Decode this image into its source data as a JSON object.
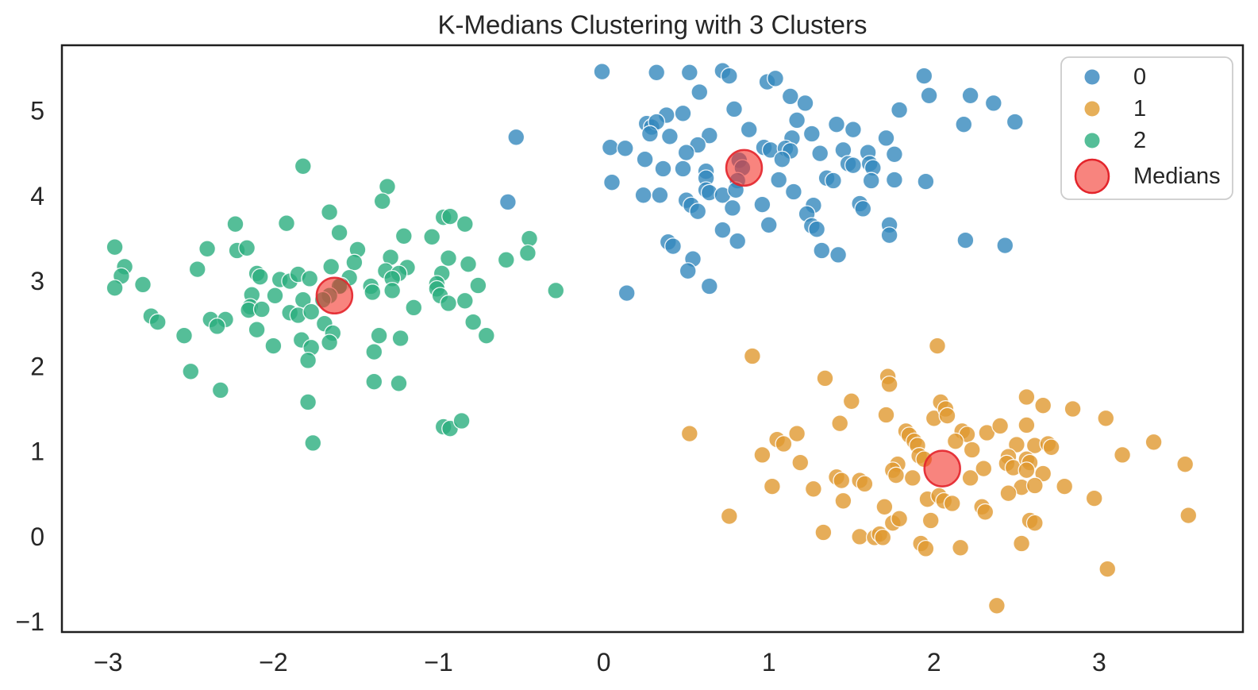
{
  "figure": {
    "title": "K-Medians Clustering with 3 Clusters",
    "background_color": "#ffffff",
    "spine_color": "#1f1f1f",
    "text_color": "#262626"
  },
  "legend": {
    "position": "upper right",
    "border_color": "#cccccc",
    "background_color": "#ffffff",
    "entries": [
      {
        "label": "0",
        "series": "cluster0",
        "marker_color": "#5C9DCA",
        "marker": "small-dot"
      },
      {
        "label": "1",
        "series": "cluster1",
        "marker_color": "#E6AF59",
        "marker": "small-dot"
      },
      {
        "label": "2",
        "series": "cluster2",
        "marker_color": "#55BE98",
        "marker": "small-dot"
      },
      {
        "label": "Medians",
        "series": "medians",
        "marker_color": "#F43228",
        "marker_edge_color": "#E3242B",
        "marker": "large-dot"
      }
    ]
  },
  "chart_data": {
    "type": "scatter",
    "title": "K-Medians Clustering with 3 Clusters",
    "xlabel": "",
    "ylabel": "",
    "xlim": [
      -3.28,
      3.87
    ],
    "ylim": [
      -1.12,
      5.77
    ],
    "grid": false,
    "xticks": {
      "values": [
        -3,
        -2,
        -1,
        0,
        1,
        2,
        3
      ],
      "labels": [
        "−3",
        "−2",
        "−1",
        "0",
        "1",
        "2",
        "3"
      ]
    },
    "yticks": {
      "values": [
        -1,
        0,
        1,
        2,
        3,
        4,
        5
      ],
      "labels": [
        "−1",
        "0",
        "1",
        "2",
        "3",
        "4",
        "5"
      ]
    },
    "series": [
      {
        "name": "0",
        "key": "cluster0",
        "color": "#3488BD",
        "alpha": 0.8,
        "marker_radius_px": 10.3,
        "edge_color": "#ffffff",
        "points": [
          [
            -0.53,
            4.69
          ],
          [
            -0.58,
            3.93
          ],
          [
            -0.01,
            5.46
          ],
          [
            0.32,
            5.45
          ],
          [
            0.52,
            5.45
          ],
          [
            0.72,
            5.47
          ],
          [
            0.76,
            5.41
          ],
          [
            0.99,
            5.34
          ],
          [
            1.04,
            5.38
          ],
          [
            0.58,
            5.22
          ],
          [
            0.79,
            5.02
          ],
          [
            0.38,
            4.95
          ],
          [
            0.48,
            4.97
          ],
          [
            0.26,
            4.85
          ],
          [
            0.29,
            4.81
          ],
          [
            0.32,
            4.87
          ],
          [
            0.28,
            4.73
          ],
          [
            0.4,
            4.7
          ],
          [
            0.64,
            4.71
          ],
          [
            0.88,
            4.78
          ],
          [
            0.04,
            4.57
          ],
          [
            0.13,
            4.56
          ],
          [
            0.57,
            4.6
          ],
          [
            0.5,
            4.51
          ],
          [
            0.25,
            4.43
          ],
          [
            0.97,
            4.57
          ],
          [
            1.01,
            4.54
          ],
          [
            0.82,
            4.42
          ],
          [
            0.84,
            4.33
          ],
          [
            0.81,
            4.18
          ],
          [
            0.36,
            4.32
          ],
          [
            0.48,
            4.32
          ],
          [
            0.62,
            4.29
          ],
          [
            0.62,
            4.21
          ],
          [
            0.05,
            4.16
          ],
          [
            0.24,
            4.01
          ],
          [
            0.34,
            4.01
          ],
          [
            0.62,
            4.07
          ],
          [
            0.64,
            4.04
          ],
          [
            0.72,
            4.01
          ],
          [
            0.8,
            4.07
          ],
          [
            0.5,
            3.95
          ],
          [
            0.53,
            3.89
          ],
          [
            0.57,
            3.82
          ],
          [
            0.78,
            3.86
          ],
          [
            0.96,
            3.9
          ],
          [
            0.72,
            3.6
          ],
          [
            0.81,
            3.47
          ],
          [
            0.39,
            3.46
          ],
          [
            0.42,
            3.41
          ],
          [
            0.54,
            3.26
          ],
          [
            0.51,
            3.12
          ],
          [
            0.64,
            2.94
          ],
          [
            0.14,
            2.86
          ],
          [
            1.0,
            3.66
          ],
          [
            1.94,
            5.41
          ],
          [
            1.13,
            5.17
          ],
          [
            1.22,
            5.09
          ],
          [
            1.97,
            5.18
          ],
          [
            2.22,
            5.18
          ],
          [
            2.36,
            5.09
          ],
          [
            1.79,
            5.01
          ],
          [
            1.17,
            4.89
          ],
          [
            2.49,
            4.87
          ],
          [
            2.18,
            4.84
          ],
          [
            1.41,
            4.84
          ],
          [
            1.51,
            4.78
          ],
          [
            1.14,
            4.68
          ],
          [
            1.26,
            4.73
          ],
          [
            1.71,
            4.68
          ],
          [
            1.1,
            4.56
          ],
          [
            1.13,
            4.53
          ],
          [
            1.08,
            4.43
          ],
          [
            1.31,
            4.5
          ],
          [
            1.45,
            4.54
          ],
          [
            1.6,
            4.51
          ],
          [
            1.76,
            4.49
          ],
          [
            1.48,
            4.38
          ],
          [
            1.51,
            4.36
          ],
          [
            1.61,
            4.38
          ],
          [
            1.63,
            4.33
          ],
          [
            1.06,
            4.19
          ],
          [
            1.35,
            4.21
          ],
          [
            1.39,
            4.18
          ],
          [
            1.62,
            4.18
          ],
          [
            1.76,
            4.19
          ],
          [
            1.95,
            4.17
          ],
          [
            1.15,
            4.05
          ],
          [
            1.27,
            3.89
          ],
          [
            1.23,
            3.79
          ],
          [
            1.55,
            3.91
          ],
          [
            1.57,
            3.85
          ],
          [
            1.26,
            3.65
          ],
          [
            1.29,
            3.61
          ],
          [
            1.73,
            3.66
          ],
          [
            1.73,
            3.54
          ],
          [
            2.19,
            3.48
          ],
          [
            2.43,
            3.42
          ],
          [
            1.32,
            3.36
          ],
          [
            1.42,
            3.31
          ]
        ]
      },
      {
        "name": "1",
        "key": "cluster1",
        "color": "#E0992F",
        "alpha": 0.8,
        "marker_radius_px": 10.3,
        "edge_color": "#ffffff",
        "points": [
          [
            0.9,
            2.12
          ],
          [
            1.34,
            1.86
          ],
          [
            1.72,
            1.88
          ],
          [
            1.73,
            1.79
          ],
          [
            1.5,
            1.59
          ],
          [
            2.02,
            2.24
          ],
          [
            1.71,
            1.43
          ],
          [
            1.43,
            1.33
          ],
          [
            0.52,
            1.21
          ],
          [
            2.0,
            1.39
          ],
          [
            1.83,
            1.24
          ],
          [
            1.85,
            1.19
          ],
          [
            1.88,
            1.12
          ],
          [
            1.9,
            1.07
          ],
          [
            1.05,
            1.14
          ],
          [
            1.09,
            1.09
          ],
          [
            1.17,
            1.21
          ],
          [
            0.96,
            0.96
          ],
          [
            1.19,
            0.87
          ],
          [
            1.91,
            0.95
          ],
          [
            1.94,
            0.91
          ],
          [
            1.78,
            0.85
          ],
          [
            1.75,
            0.78
          ],
          [
            1.77,
            0.72
          ],
          [
            1.87,
            0.69
          ],
          [
            1.41,
            0.7
          ],
          [
            1.44,
            0.66
          ],
          [
            1.55,
            0.66
          ],
          [
            1.58,
            0.62
          ],
          [
            1.02,
            0.59
          ],
          [
            1.27,
            0.56
          ],
          [
            1.45,
            0.42
          ],
          [
            1.96,
            0.44
          ],
          [
            1.7,
            0.35
          ],
          [
            0.76,
            0.24
          ],
          [
            1.98,
            0.19
          ],
          [
            1.75,
            0.16
          ],
          [
            1.79,
            0.21
          ],
          [
            1.33,
            0.05
          ],
          [
            1.55,
            0.0
          ],
          [
            1.64,
            -0.01
          ],
          [
            1.67,
            0.03
          ],
          [
            1.69,
            -0.01
          ],
          [
            1.92,
            -0.08
          ],
          [
            1.95,
            -0.14
          ],
          [
            2.56,
            1.64
          ],
          [
            2.66,
            1.54
          ],
          [
            2.84,
            1.5
          ],
          [
            2.04,
            1.58
          ],
          [
            2.07,
            1.5
          ],
          [
            2.08,
            1.42
          ],
          [
            3.04,
            1.39
          ],
          [
            2.17,
            1.24
          ],
          [
            2.2,
            1.2
          ],
          [
            2.32,
            1.22
          ],
          [
            2.4,
            1.3
          ],
          [
            2.56,
            1.31
          ],
          [
            2.13,
            1.12
          ],
          [
            2.5,
            1.08
          ],
          [
            2.61,
            1.07
          ],
          [
            2.69,
            1.09
          ],
          [
            2.71,
            1.05
          ],
          [
            2.23,
            1.02
          ],
          [
            3.33,
            1.11
          ],
          [
            3.14,
            0.96
          ],
          [
            3.52,
            0.85
          ],
          [
            2.45,
            0.94
          ],
          [
            2.44,
            0.86
          ],
          [
            2.48,
            0.81
          ],
          [
            2.56,
            0.91
          ],
          [
            2.58,
            0.87
          ],
          [
            2.3,
            0.8
          ],
          [
            2.56,
            0.78
          ],
          [
            2.66,
            0.74
          ],
          [
            2.22,
            0.69
          ],
          [
            2.53,
            0.58
          ],
          [
            2.61,
            0.6
          ],
          [
            2.45,
            0.51
          ],
          [
            2.79,
            0.59
          ],
          [
            2.97,
            0.45
          ],
          [
            2.03,
            0.48
          ],
          [
            2.06,
            0.42
          ],
          [
            2.11,
            0.39
          ],
          [
            2.29,
            0.35
          ],
          [
            2.31,
            0.29
          ],
          [
            2.58,
            0.19
          ],
          [
            2.61,
            0.16
          ],
          [
            3.54,
            0.25
          ],
          [
            2.16,
            -0.13
          ],
          [
            2.53,
            -0.08
          ],
          [
            3.05,
            -0.38
          ],
          [
            2.38,
            -0.81
          ]
        ]
      },
      {
        "name": "2",
        "key": "cluster2",
        "color": "#2BAE7E",
        "alpha": 0.8,
        "marker_radius_px": 10.3,
        "edge_color": "#ffffff",
        "points": [
          [
            -1.82,
            4.35
          ],
          [
            -2.23,
            3.67
          ],
          [
            -1.92,
            3.68
          ],
          [
            -2.96,
            3.4
          ],
          [
            -2.4,
            3.38
          ],
          [
            -2.22,
            3.36
          ],
          [
            -2.16,
            3.39
          ],
          [
            -2.9,
            3.17
          ],
          [
            -2.92,
            3.06
          ],
          [
            -2.46,
            3.14
          ],
          [
            -2.79,
            2.96
          ],
          [
            -2.96,
            2.92
          ],
          [
            -2.1,
            3.09
          ],
          [
            -2.08,
            3.05
          ],
          [
            -1.96,
            3.02
          ],
          [
            -1.9,
            3.0
          ],
          [
            -1.85,
            3.08
          ],
          [
            -1.78,
            3.03
          ],
          [
            -2.13,
            2.84
          ],
          [
            -1.99,
            2.83
          ],
          [
            -2.14,
            2.7
          ],
          [
            -2.15,
            2.66
          ],
          [
            -2.07,
            2.67
          ],
          [
            -1.82,
            2.78
          ],
          [
            -1.9,
            2.63
          ],
          [
            -1.85,
            2.6
          ],
          [
            -1.77,
            2.64
          ],
          [
            -2.74,
            2.59
          ],
          [
            -2.7,
            2.52
          ],
          [
            -2.38,
            2.55
          ],
          [
            -2.29,
            2.55
          ],
          [
            -2.34,
            2.47
          ],
          [
            -2.54,
            2.36
          ],
          [
            -2.1,
            2.43
          ],
          [
            -2.0,
            2.24
          ],
          [
            -1.83,
            2.31
          ],
          [
            -1.77,
            2.22
          ],
          [
            -1.79,
            2.07
          ],
          [
            -2.5,
            1.94
          ],
          [
            -2.32,
            1.72
          ],
          [
            -1.79,
            1.58
          ],
          [
            -1.76,
            1.1
          ],
          [
            -1.31,
            4.11
          ],
          [
            -1.34,
            3.94
          ],
          [
            -1.66,
            3.81
          ],
          [
            -1.6,
            3.57
          ],
          [
            -0.97,
            3.75
          ],
          [
            -0.93,
            3.76
          ],
          [
            -0.84,
            3.67
          ],
          [
            -1.21,
            3.53
          ],
          [
            -1.04,
            3.52
          ],
          [
            -0.45,
            3.5
          ],
          [
            -1.49,
            3.37
          ],
          [
            -1.51,
            3.22
          ],
          [
            -1.29,
            3.28
          ],
          [
            -1.65,
            3.17
          ],
          [
            -0.94,
            3.27
          ],
          [
            -0.82,
            3.2
          ],
          [
            -0.59,
            3.25
          ],
          [
            -0.46,
            3.33
          ],
          [
            -1.32,
            3.12
          ],
          [
            -1.19,
            3.16
          ],
          [
            -1.24,
            3.09
          ],
          [
            -1.28,
            3.03
          ],
          [
            -1.54,
            3.04
          ],
          [
            -1.59,
            2.95
          ],
          [
            -0.98,
            3.09
          ],
          [
            -1.01,
            2.97
          ],
          [
            -1.01,
            2.91
          ],
          [
            -0.76,
            2.95
          ],
          [
            -0.29,
            2.89
          ],
          [
            -1.6,
            2.94
          ],
          [
            -1.66,
            2.83
          ],
          [
            -1.7,
            2.78
          ],
          [
            -1.41,
            2.94
          ],
          [
            -1.4,
            2.87
          ],
          [
            -1.28,
            2.89
          ],
          [
            -0.99,
            2.83
          ],
          [
            -0.94,
            2.74
          ],
          [
            -0.84,
            2.77
          ],
          [
            -1.15,
            2.69
          ],
          [
            -1.69,
            2.5
          ],
          [
            -1.64,
            2.39
          ],
          [
            -1.66,
            2.28
          ],
          [
            -1.36,
            2.36
          ],
          [
            -1.23,
            2.33
          ],
          [
            -1.39,
            2.17
          ],
          [
            -0.79,
            2.52
          ],
          [
            -0.71,
            2.36
          ],
          [
            -1.39,
            1.82
          ],
          [
            -1.24,
            1.8
          ],
          [
            -0.97,
            1.29
          ],
          [
            -0.93,
            1.27
          ],
          [
            -0.86,
            1.36
          ]
        ]
      },
      {
        "name": "Medians",
        "key": "medians",
        "color": "#F43228",
        "alpha": 0.6,
        "marker_radius_px": 22.5,
        "edge_color": "#E3242B",
        "edge_width": 2.5,
        "points": [
          [
            0.85,
            4.33
          ],
          [
            2.05,
            0.8
          ],
          [
            -1.63,
            2.83
          ]
        ]
      }
    ]
  }
}
